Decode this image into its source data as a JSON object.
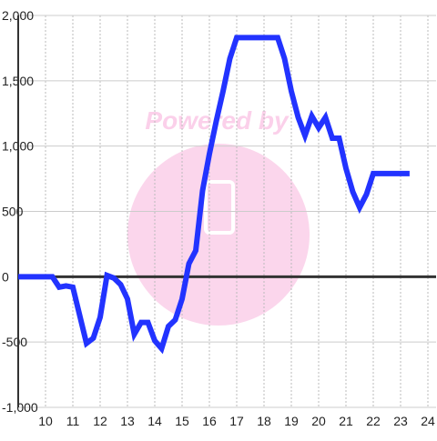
{
  "chart_data": {
    "type": "line",
    "watermark": "Powered by",
    "x": [
      9,
      10.25,
      10.5,
      10.75,
      11,
      11.5,
      11.75,
      12,
      12.25,
      12.5,
      12.75,
      13,
      13.25,
      13.5,
      13.75,
      14,
      14.25,
      14.5,
      14.75,
      15,
      15.25,
      15.5,
      15.75,
      16,
      16.25,
      16.5,
      16.75,
      17,
      18.5,
      18.75,
      19,
      19.25,
      19.5,
      19.75,
      20,
      20.25,
      20.5,
      20.75,
      21,
      21.25,
      21.5,
      21.75,
      22,
      23.33
    ],
    "series": [
      {
        "color": "#2233ff",
        "values": [
          0,
          0,
          -80,
          -70,
          -80,
          -510,
          -470,
          -310,
          10,
          -10,
          -60,
          -170,
          -440,
          -350,
          -350,
          -490,
          -550,
          -380,
          -330,
          -170,
          100,
          200,
          660,
          940,
          1190,
          1420,
          1670,
          1830,
          1830,
          1670,
          1420,
          1220,
          1080,
          1230,
          1140,
          1220,
          1060,
          1060,
          830,
          650,
          530,
          630,
          790,
          790
        ]
      }
    ],
    "xlim": [
      9,
      24.3
    ],
    "xticks": [
      10,
      11,
      12,
      13,
      14,
      15,
      16,
      17,
      18,
      19,
      20,
      21,
      22,
      23,
      24
    ],
    "ylim": [
      -1000,
      2000
    ],
    "yticks": [
      {
        "value": -1000,
        "label": "-1,000"
      },
      -500,
      0,
      500,
      {
        "value": 1000,
        "label": "1,000"
      },
      {
        "value": 1500,
        "label": "1,500"
      },
      {
        "value": 2000,
        "label": "2,000"
      }
    ],
    "grid": true
  }
}
